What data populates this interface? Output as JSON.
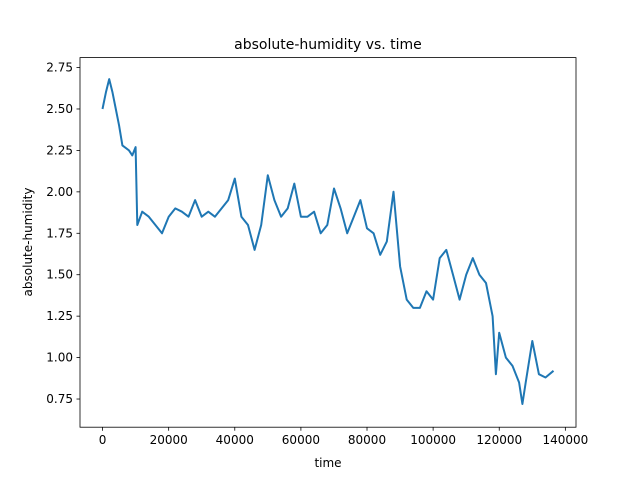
{
  "chart_data": {
    "type": "line",
    "title": "absolute-humidity vs. time",
    "x_label": "time",
    "y_label": "absolute-humidity",
    "x": [
      0,
      1000,
      2000,
      3000,
      4000,
      5000,
      6000,
      8000,
      9000,
      10000,
      10500,
      12000,
      14000,
      16000,
      18000,
      20000,
      22000,
      24000,
      26000,
      28000,
      30000,
      32000,
      34000,
      36000,
      38000,
      40000,
      42000,
      44000,
      46000,
      48000,
      50000,
      52000,
      54000,
      56000,
      58000,
      60000,
      62000,
      64000,
      66000,
      68000,
      70000,
      72000,
      74000,
      76000,
      78000,
      80000,
      82000,
      84000,
      86000,
      88000,
      90000,
      92000,
      94000,
      96000,
      98000,
      100000,
      102000,
      104000,
      106000,
      108000,
      110000,
      112000,
      114000,
      116000,
      118000,
      119000,
      120000,
      122000,
      124000,
      126000,
      127000,
      128000,
      130000,
      132000,
      134000,
      136400
    ],
    "series": [
      {
        "name": "absolute-humidity",
        "color": "#1f77b4",
        "values": [
          2.5,
          2.6,
          2.68,
          2.6,
          2.5,
          2.4,
          2.28,
          2.25,
          2.22,
          2.27,
          1.8,
          1.88,
          1.85,
          1.8,
          1.75,
          1.85,
          1.9,
          1.88,
          1.85,
          1.95,
          1.85,
          1.88,
          1.85,
          1.9,
          1.95,
          2.08,
          1.85,
          1.8,
          1.65,
          1.8,
          2.1,
          1.95,
          1.85,
          1.9,
          2.05,
          1.85,
          1.85,
          1.88,
          1.75,
          1.8,
          2.02,
          1.9,
          1.75,
          1.85,
          1.95,
          1.78,
          1.75,
          1.62,
          1.7,
          2.0,
          1.55,
          1.35,
          1.3,
          1.3,
          1.4,
          1.35,
          1.6,
          1.65,
          1.5,
          1.35,
          1.5,
          1.6,
          1.5,
          1.45,
          1.25,
          0.9,
          1.15,
          1.0,
          0.95,
          0.85,
          0.72,
          0.85,
          1.1,
          0.9,
          0.88,
          0.92
        ]
      }
    ],
    "xlim": [
      -6820,
      143220
    ],
    "ylim": [
      0.58,
      2.81
    ],
    "xticks": [
      0,
      20000,
      40000,
      60000,
      80000,
      100000,
      120000,
      140000
    ],
    "yticks": [
      0.75,
      {
        "value": 1.0,
        "label": "1.00"
      },
      1.25,
      {
        "value": 1.5,
        "label": "1.50"
      },
      1.75,
      {
        "value": 2.0,
        "label": "2.00"
      },
      2.25,
      {
        "value": 2.5,
        "label": "2.50"
      },
      2.75
    ]
  }
}
